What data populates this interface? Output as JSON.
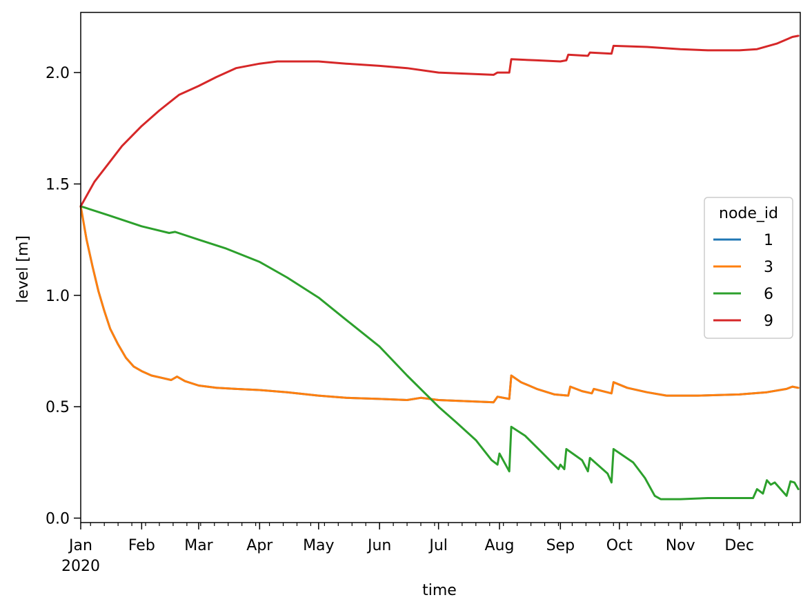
{
  "chart_data": {
    "type": "line",
    "title": "",
    "xlabel": "time",
    "ylabel": "level [m]",
    "xlim": [
      "2020-01-01",
      "2020-12-31"
    ],
    "ylim": [
      -0.02,
      2.27
    ],
    "x_ticks": [
      {
        "date": "2020-01-01",
        "label": "Jan",
        "sublabel": "2020"
      },
      {
        "date": "2020-02-01",
        "label": "Feb"
      },
      {
        "date": "2020-03-01",
        "label": "Mar"
      },
      {
        "date": "2020-04-01",
        "label": "Apr"
      },
      {
        "date": "2020-05-01",
        "label": "May"
      },
      {
        "date": "2020-06-01",
        "label": "Jun"
      },
      {
        "date": "2020-07-01",
        "label": "Jul"
      },
      {
        "date": "2020-08-01",
        "label": "Aug"
      },
      {
        "date": "2020-09-01",
        "label": "Sep"
      },
      {
        "date": "2020-10-01",
        "label": "Oct"
      },
      {
        "date": "2020-11-01",
        "label": "Nov"
      },
      {
        "date": "2020-12-01",
        "label": "Dec"
      }
    ],
    "y_ticks": [
      {
        "value": 0.0,
        "label": "0.0"
      },
      {
        "value": 0.5,
        "label": "0.5"
      },
      {
        "value": 1.0,
        "label": "1.0"
      },
      {
        "value": 1.5,
        "label": "1.5"
      },
      {
        "value": 2.0,
        "label": "2.0"
      }
    ],
    "legend": {
      "title": "node_id",
      "position": "center-right"
    },
    "grid": false,
    "series": [
      {
        "name": "1",
        "color": "#1f77b4",
        "points": [
          [
            "2020-01-01",
            1.4
          ],
          [
            "2020-01-04",
            1.25
          ],
          [
            "2020-01-07",
            1.13
          ],
          [
            "2020-01-10",
            1.02
          ],
          [
            "2020-01-13",
            0.93
          ],
          [
            "2020-01-16",
            0.85
          ],
          [
            "2020-01-20",
            0.78
          ],
          [
            "2020-01-24",
            0.72
          ],
          [
            "2020-01-28",
            0.68
          ],
          [
            "2020-02-01",
            0.66
          ],
          [
            "2020-02-06",
            0.64
          ],
          [
            "2020-02-11",
            0.63
          ],
          [
            "2020-02-16",
            0.62
          ],
          [
            "2020-02-19",
            0.635
          ],
          [
            "2020-02-23",
            0.615
          ],
          [
            "2020-03-01",
            0.595
          ],
          [
            "2020-03-10",
            0.585
          ],
          [
            "2020-03-20",
            0.58
          ],
          [
            "2020-04-01",
            0.575
          ],
          [
            "2020-04-15",
            0.565
          ],
          [
            "2020-05-01",
            0.55
          ],
          [
            "2020-05-15",
            0.54
          ],
          [
            "2020-06-01",
            0.535
          ],
          [
            "2020-06-15",
            0.53
          ],
          [
            "2020-06-22",
            0.54
          ],
          [
            "2020-07-01",
            0.53
          ],
          [
            "2020-07-15",
            0.525
          ],
          [
            "2020-07-29",
            0.52
          ],
          [
            "2020-07-31",
            0.545
          ],
          [
            "2020-08-06",
            0.535
          ],
          [
            "2020-08-07",
            0.64
          ],
          [
            "2020-08-12",
            0.61
          ],
          [
            "2020-08-20",
            0.58
          ],
          [
            "2020-08-29",
            0.555
          ],
          [
            "2020-09-05",
            0.55
          ],
          [
            "2020-09-06",
            0.59
          ],
          [
            "2020-09-12",
            0.57
          ],
          [
            "2020-09-17",
            0.56
          ],
          [
            "2020-09-18",
            0.58
          ],
          [
            "2020-09-27",
            0.56
          ],
          [
            "2020-09-28",
            0.61
          ],
          [
            "2020-10-05",
            0.585
          ],
          [
            "2020-10-15",
            0.565
          ],
          [
            "2020-10-25",
            0.55
          ],
          [
            "2020-11-10",
            0.55
          ],
          [
            "2020-12-01",
            0.555
          ],
          [
            "2020-12-15",
            0.565
          ],
          [
            "2020-12-25",
            0.58
          ],
          [
            "2020-12-28",
            0.59
          ],
          [
            "2020-12-31",
            0.585
          ]
        ]
      },
      {
        "name": "3",
        "color": "#ff7f0e",
        "points": [
          [
            "2020-01-01",
            1.4
          ],
          [
            "2020-01-04",
            1.25
          ],
          [
            "2020-01-07",
            1.13
          ],
          [
            "2020-01-10",
            1.02
          ],
          [
            "2020-01-13",
            0.93
          ],
          [
            "2020-01-16",
            0.85
          ],
          [
            "2020-01-20",
            0.78
          ],
          [
            "2020-01-24",
            0.72
          ],
          [
            "2020-01-28",
            0.68
          ],
          [
            "2020-02-01",
            0.66
          ],
          [
            "2020-02-06",
            0.64
          ],
          [
            "2020-02-11",
            0.63
          ],
          [
            "2020-02-16",
            0.62
          ],
          [
            "2020-02-19",
            0.635
          ],
          [
            "2020-02-23",
            0.615
          ],
          [
            "2020-03-01",
            0.595
          ],
          [
            "2020-03-10",
            0.585
          ],
          [
            "2020-03-20",
            0.58
          ],
          [
            "2020-04-01",
            0.575
          ],
          [
            "2020-04-15",
            0.565
          ],
          [
            "2020-05-01",
            0.55
          ],
          [
            "2020-05-15",
            0.54
          ],
          [
            "2020-06-01",
            0.535
          ],
          [
            "2020-06-15",
            0.53
          ],
          [
            "2020-06-22",
            0.54
          ],
          [
            "2020-07-01",
            0.53
          ],
          [
            "2020-07-15",
            0.525
          ],
          [
            "2020-07-29",
            0.52
          ],
          [
            "2020-07-31",
            0.545
          ],
          [
            "2020-08-06",
            0.535
          ],
          [
            "2020-08-07",
            0.64
          ],
          [
            "2020-08-12",
            0.61
          ],
          [
            "2020-08-20",
            0.58
          ],
          [
            "2020-08-29",
            0.555
          ],
          [
            "2020-09-05",
            0.55
          ],
          [
            "2020-09-06",
            0.59
          ],
          [
            "2020-09-12",
            0.57
          ],
          [
            "2020-09-17",
            0.56
          ],
          [
            "2020-09-18",
            0.58
          ],
          [
            "2020-09-27",
            0.56
          ],
          [
            "2020-09-28",
            0.61
          ],
          [
            "2020-10-05",
            0.585
          ],
          [
            "2020-10-15",
            0.565
          ],
          [
            "2020-10-25",
            0.55
          ],
          [
            "2020-11-10",
            0.55
          ],
          [
            "2020-12-01",
            0.555
          ],
          [
            "2020-12-15",
            0.565
          ],
          [
            "2020-12-25",
            0.58
          ],
          [
            "2020-12-28",
            0.59
          ],
          [
            "2020-12-31",
            0.585
          ]
        ]
      },
      {
        "name": "6",
        "color": "#2ca02c",
        "points": [
          [
            "2020-01-01",
            1.4
          ],
          [
            "2020-01-15",
            1.36
          ],
          [
            "2020-02-01",
            1.31
          ],
          [
            "2020-02-15",
            1.28
          ],
          [
            "2020-02-18",
            1.285
          ],
          [
            "2020-03-01",
            1.25
          ],
          [
            "2020-03-15",
            1.21
          ],
          [
            "2020-04-01",
            1.15
          ],
          [
            "2020-04-15",
            1.08
          ],
          [
            "2020-05-01",
            0.99
          ],
          [
            "2020-05-15",
            0.89
          ],
          [
            "2020-06-01",
            0.77
          ],
          [
            "2020-06-15",
            0.64
          ],
          [
            "2020-07-01",
            0.5
          ],
          [
            "2020-07-10",
            0.43
          ],
          [
            "2020-07-20",
            0.35
          ],
          [
            "2020-07-28",
            0.26
          ],
          [
            "2020-07-31",
            0.24
          ],
          [
            "2020-08-01",
            0.29
          ],
          [
            "2020-08-06",
            0.21
          ],
          [
            "2020-08-07",
            0.41
          ],
          [
            "2020-08-14",
            0.37
          ],
          [
            "2020-08-22",
            0.3
          ],
          [
            "2020-08-31",
            0.22
          ],
          [
            "2020-09-01",
            0.24
          ],
          [
            "2020-09-03",
            0.22
          ],
          [
            "2020-09-04",
            0.31
          ],
          [
            "2020-09-12",
            0.26
          ],
          [
            "2020-09-15",
            0.21
          ],
          [
            "2020-09-16",
            0.27
          ],
          [
            "2020-09-25",
            0.2
          ],
          [
            "2020-09-27",
            0.16
          ],
          [
            "2020-09-28",
            0.31
          ],
          [
            "2020-10-08",
            0.25
          ],
          [
            "2020-10-14",
            0.18
          ],
          [
            "2020-10-19",
            0.1
          ],
          [
            "2020-10-22",
            0.085
          ],
          [
            "2020-11-01",
            0.085
          ],
          [
            "2020-11-15",
            0.09
          ],
          [
            "2020-12-01",
            0.09
          ],
          [
            "2020-12-08",
            0.09
          ],
          [
            "2020-12-10",
            0.13
          ],
          [
            "2020-12-13",
            0.11
          ],
          [
            "2020-12-15",
            0.17
          ],
          [
            "2020-12-17",
            0.15
          ],
          [
            "2020-12-19",
            0.16
          ],
          [
            "2020-12-24",
            0.11
          ],
          [
            "2020-12-25",
            0.1
          ],
          [
            "2020-12-27",
            0.165
          ],
          [
            "2020-12-29",
            0.16
          ],
          [
            "2020-12-31",
            0.13
          ]
        ]
      },
      {
        "name": "9",
        "color": "#d62728",
        "points": [
          [
            "2020-01-01",
            1.4
          ],
          [
            "2020-01-08",
            1.51
          ],
          [
            "2020-01-15",
            1.59
          ],
          [
            "2020-01-22",
            1.67
          ],
          [
            "2020-02-01",
            1.76
          ],
          [
            "2020-02-10",
            1.83
          ],
          [
            "2020-02-20",
            1.9
          ],
          [
            "2020-03-01",
            1.94
          ],
          [
            "2020-03-10",
            1.98
          ],
          [
            "2020-03-20",
            2.02
          ],
          [
            "2020-04-01",
            2.04
          ],
          [
            "2020-04-10",
            2.05
          ],
          [
            "2020-05-01",
            2.05
          ],
          [
            "2020-05-15",
            2.04
          ],
          [
            "2020-06-01",
            2.03
          ],
          [
            "2020-06-15",
            2.02
          ],
          [
            "2020-07-01",
            2.0
          ],
          [
            "2020-07-15",
            1.995
          ],
          [
            "2020-07-29",
            1.99
          ],
          [
            "2020-07-31",
            2.0
          ],
          [
            "2020-08-06",
            2.0
          ],
          [
            "2020-08-07",
            2.06
          ],
          [
            "2020-08-20",
            2.055
          ],
          [
            "2020-09-01",
            2.05
          ],
          [
            "2020-09-04",
            2.055
          ],
          [
            "2020-09-05",
            2.08
          ],
          [
            "2020-09-15",
            2.075
          ],
          [
            "2020-09-16",
            2.09
          ],
          [
            "2020-09-27",
            2.085
          ],
          [
            "2020-09-28",
            2.12
          ],
          [
            "2020-10-15",
            2.115
          ],
          [
            "2020-11-01",
            2.105
          ],
          [
            "2020-11-15",
            2.1
          ],
          [
            "2020-12-01",
            2.1
          ],
          [
            "2020-12-10",
            2.105
          ],
          [
            "2020-12-20",
            2.13
          ],
          [
            "2020-12-28",
            2.16
          ],
          [
            "2020-12-31",
            2.165
          ]
        ]
      }
    ]
  }
}
